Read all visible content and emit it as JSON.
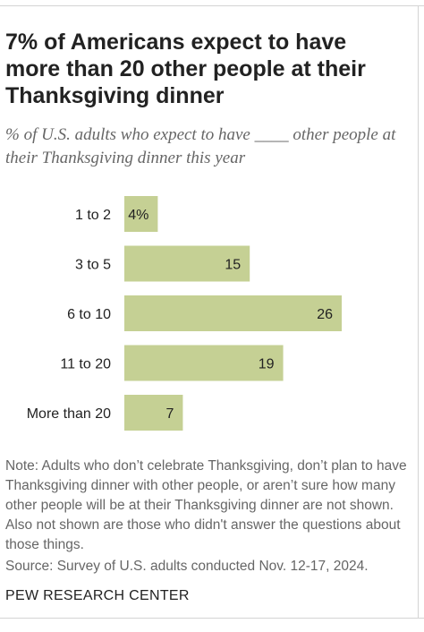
{
  "header": {
    "title": "7% of Americans expect to have more than 20 other people at their Thanksgiving dinner",
    "subtitle": "% of U.S. adults who expect to have ____ other people at their Thanksgiving dinner this year"
  },
  "chart_data": {
    "type": "bar",
    "orientation": "horizontal",
    "categories": [
      "1 to 2",
      "3 to 5",
      "6 to 10",
      "11 to 20",
      "More than 20"
    ],
    "values": [
      4,
      15,
      26,
      19,
      7
    ],
    "value_labels": [
      "4%",
      "15",
      "26",
      "19",
      "7"
    ],
    "xlim": [
      0,
      26
    ],
    "grid": false,
    "bar_color": "#c5d094"
  },
  "footer": {
    "note": "Note: Adults who don’t celebrate Thanksgiving, don’t plan to have Thanksgiving dinner with other people, or aren’t sure how many other people will be at their Thanksgiving dinner are not shown. Also not shown are those who didn't answer the questions about those things.",
    "source": "Source: Survey of U.S. adults conducted Nov. 12-17, 2024.",
    "brand": "PEW RESEARCH CENTER"
  },
  "colors": {
    "bar": "#c5d094",
    "text": "#222222",
    "muted": "#666666"
  }
}
